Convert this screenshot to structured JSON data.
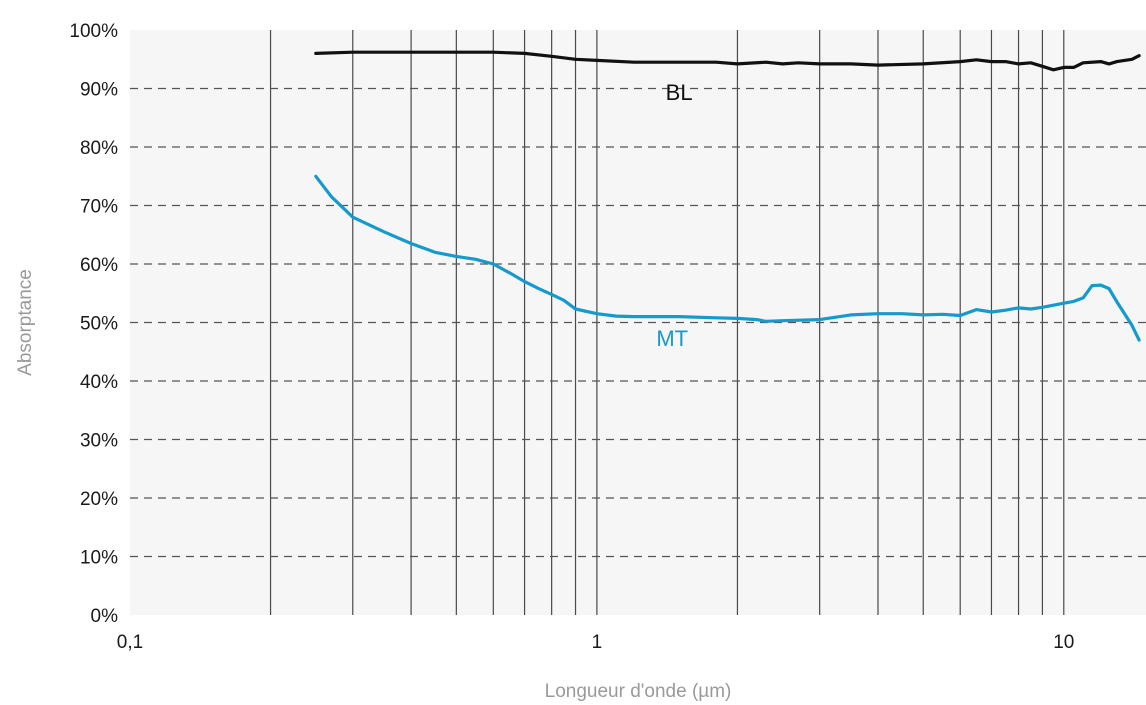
{
  "chart_data": {
    "type": "line",
    "title": "",
    "xlabel": "Longueur d'onde (µm)",
    "ylabel": "Absorptance",
    "x_scale": "log",
    "xlim": [
      0.1,
      15
    ],
    "ylim": [
      0,
      100
    ],
    "x_ticks": [
      {
        "value": 0.1,
        "label": "0,1"
      },
      {
        "value": 1,
        "label": "1"
      },
      {
        "value": 10,
        "label": "10"
      }
    ],
    "y_ticks": [
      {
        "value": 0,
        "label": "0%"
      },
      {
        "value": 10,
        "label": "10%"
      },
      {
        "value": 20,
        "label": "20%"
      },
      {
        "value": 30,
        "label": "30%"
      },
      {
        "value": 40,
        "label": "40%"
      },
      {
        "value": 50,
        "label": "50%"
      },
      {
        "value": 60,
        "label": "60%"
      },
      {
        "value": 70,
        "label": "70%"
      },
      {
        "value": 80,
        "label": "80%"
      },
      {
        "value": 90,
        "label": "90%"
      },
      {
        "value": 100,
        "label": "100%"
      }
    ],
    "grid": {
      "x": "solid, log minor",
      "y": "dashed"
    },
    "background_color": "#f6f6f6",
    "series": [
      {
        "name": "BL",
        "color": "#111111",
        "label_at": {
          "x": 1.5,
          "y": 88
        },
        "points": [
          [
            0.25,
            96.0
          ],
          [
            0.3,
            96.2
          ],
          [
            0.4,
            96.2
          ],
          [
            0.5,
            96.2
          ],
          [
            0.6,
            96.2
          ],
          [
            0.7,
            96.0
          ],
          [
            0.8,
            95.5
          ],
          [
            0.9,
            95.0
          ],
          [
            1.0,
            94.8
          ],
          [
            1.2,
            94.5
          ],
          [
            1.5,
            94.5
          ],
          [
            1.8,
            94.5
          ],
          [
            2.0,
            94.2
          ],
          [
            2.3,
            94.5
          ],
          [
            2.5,
            94.2
          ],
          [
            2.7,
            94.4
          ],
          [
            3.0,
            94.2
          ],
          [
            3.5,
            94.2
          ],
          [
            4.0,
            94.0
          ],
          [
            5.0,
            94.2
          ],
          [
            6.0,
            94.6
          ],
          [
            6.5,
            94.9
          ],
          [
            7.0,
            94.6
          ],
          [
            7.5,
            94.6
          ],
          [
            8.0,
            94.2
          ],
          [
            8.5,
            94.4
          ],
          [
            9.0,
            93.8
          ],
          [
            9.5,
            93.2
          ],
          [
            10.0,
            93.6
          ],
          [
            10.5,
            93.6
          ],
          [
            11.0,
            94.4
          ],
          [
            12.0,
            94.6
          ],
          [
            12.5,
            94.2
          ],
          [
            13.0,
            94.6
          ],
          [
            14.0,
            95.0
          ],
          [
            14.5,
            95.6
          ]
        ]
      },
      {
        "name": "MT",
        "color": "#1699cc",
        "label_at": {
          "x": 1.45,
          "y": 46
        },
        "points": [
          [
            0.25,
            75.0
          ],
          [
            0.27,
            71.5
          ],
          [
            0.3,
            68.0
          ],
          [
            0.35,
            65.5
          ],
          [
            0.4,
            63.5
          ],
          [
            0.45,
            62.0
          ],
          [
            0.5,
            61.3
          ],
          [
            0.55,
            60.8
          ],
          [
            0.6,
            60.0
          ],
          [
            0.65,
            58.5
          ],
          [
            0.7,
            57.0
          ],
          [
            0.75,
            55.8
          ],
          [
            0.8,
            54.8
          ],
          [
            0.85,
            53.8
          ],
          [
            0.9,
            52.3
          ],
          [
            1.0,
            51.5
          ],
          [
            1.1,
            51.1
          ],
          [
            1.2,
            51.0
          ],
          [
            1.5,
            51.0
          ],
          [
            1.8,
            50.8
          ],
          [
            2.0,
            50.7
          ],
          [
            2.2,
            50.5
          ],
          [
            2.3,
            50.2
          ],
          [
            2.5,
            50.3
          ],
          [
            3.0,
            50.5
          ],
          [
            3.5,
            51.3
          ],
          [
            4.0,
            51.5
          ],
          [
            4.5,
            51.5
          ],
          [
            5.0,
            51.3
          ],
          [
            5.5,
            51.4
          ],
          [
            6.0,
            51.2
          ],
          [
            6.5,
            52.2
          ],
          [
            7.0,
            51.8
          ],
          [
            7.5,
            52.1
          ],
          [
            8.0,
            52.5
          ],
          [
            8.5,
            52.3
          ],
          [
            9.0,
            52.6
          ],
          [
            10.0,
            53.3
          ],
          [
            10.5,
            53.6
          ],
          [
            11.0,
            54.2
          ],
          [
            11.5,
            56.3
          ],
          [
            12.0,
            56.4
          ],
          [
            12.5,
            55.8
          ],
          [
            13.0,
            53.5
          ],
          [
            14.0,
            49.5
          ],
          [
            14.5,
            47.0
          ]
        ]
      }
    ]
  }
}
